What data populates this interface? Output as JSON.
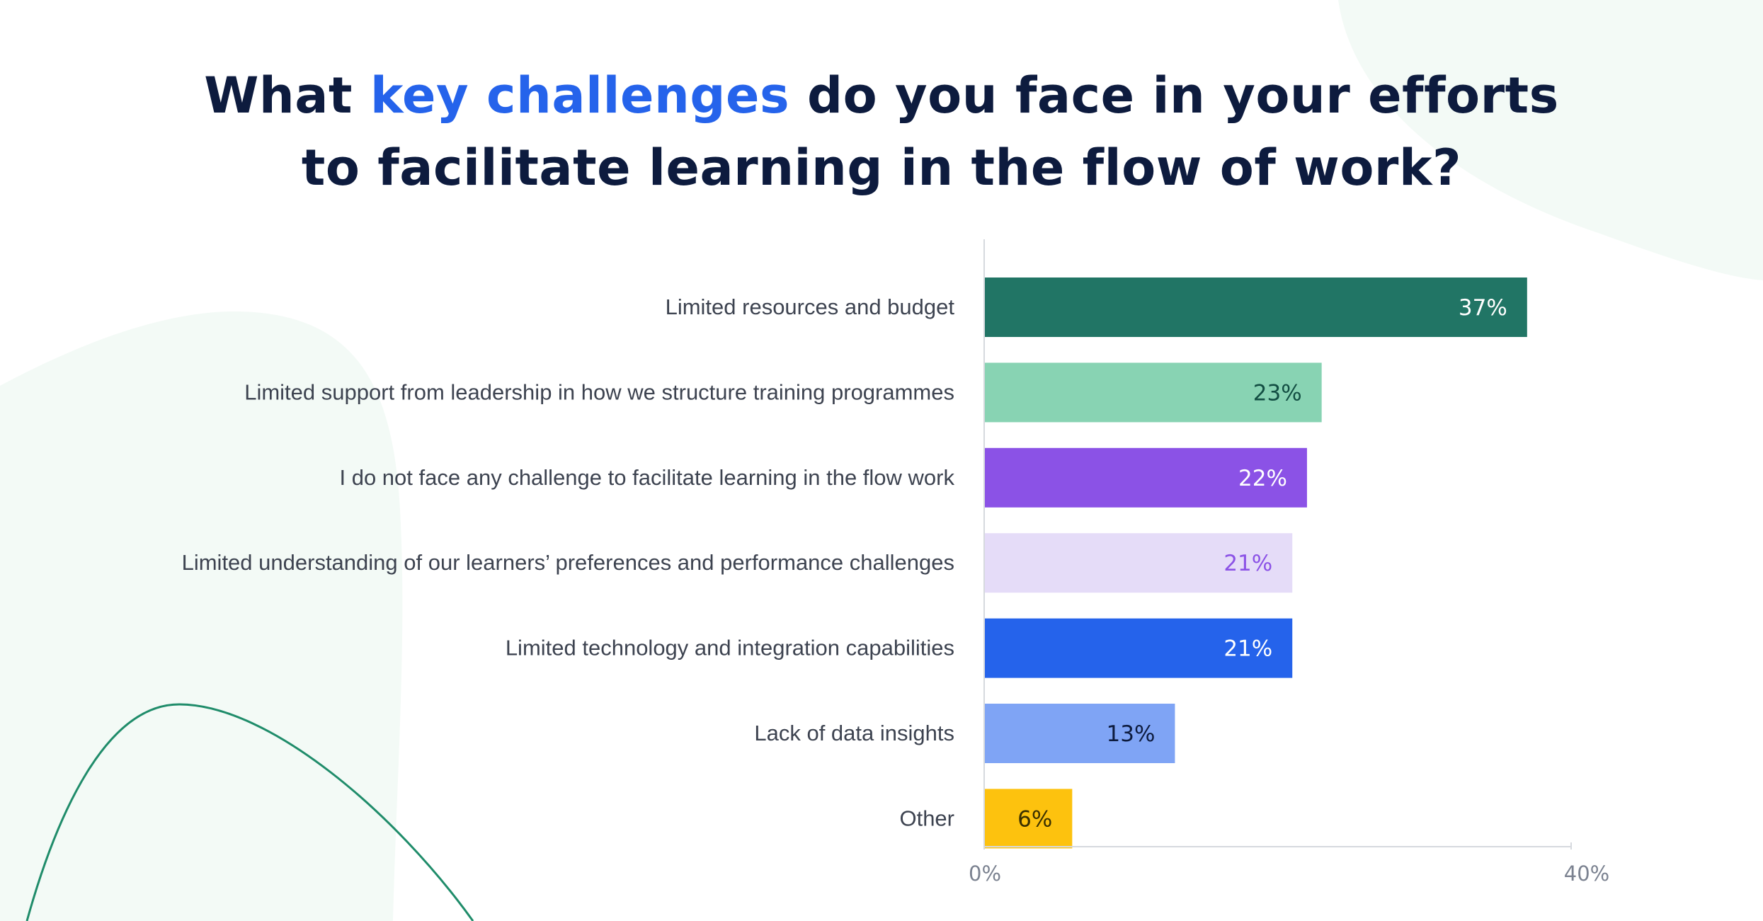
{
  "title": {
    "part1": "What ",
    "highlight": "key challenges",
    "part2": " do you face in your efforts",
    "line2": "to facilitate learning in the flow of work?"
  },
  "colors": {
    "title": "#0d1b3e",
    "highlight": "#2563eb",
    "background_shape": "#f3faf6",
    "decorative_curve": "#1f8c6a",
    "axis": "#d6d9de",
    "category_label": "#3d4350",
    "tick_label": "#7b8290"
  },
  "chart_data": {
    "type": "bar",
    "orientation": "horizontal",
    "categories": [
      "Limited resources and budget",
      "Limited support from leadership in how we structure training programmes",
      "I do not face any challenge to facilitate learning in the flow work",
      "Limited understanding of our learners’ preferences and performance challenges",
      "Limited technology and integration capabilities",
      "Lack of data insights",
      "Other"
    ],
    "values": [
      37,
      23,
      22,
      21,
      21,
      13,
      6
    ],
    "value_labels": [
      "37%",
      "23%",
      "22%",
      "21%",
      "21%",
      "13%",
      "6%"
    ],
    "bar_colors": [
      "#217565",
      "#88d3b3",
      "#8b52e6",
      "#e5dcf8",
      "#2563eb",
      "#7fa4f5",
      "#fdc20e"
    ],
    "label_colors": [
      "#ffffff",
      "#134e43",
      "#ffffff",
      "#8b52e6",
      "#ffffff",
      "#0d1b3e",
      "#3a3000"
    ],
    "xlim": [
      0,
      40
    ],
    "x_ticks": [
      "0%",
      "40%"
    ],
    "grid": false,
    "legend": "none"
  }
}
